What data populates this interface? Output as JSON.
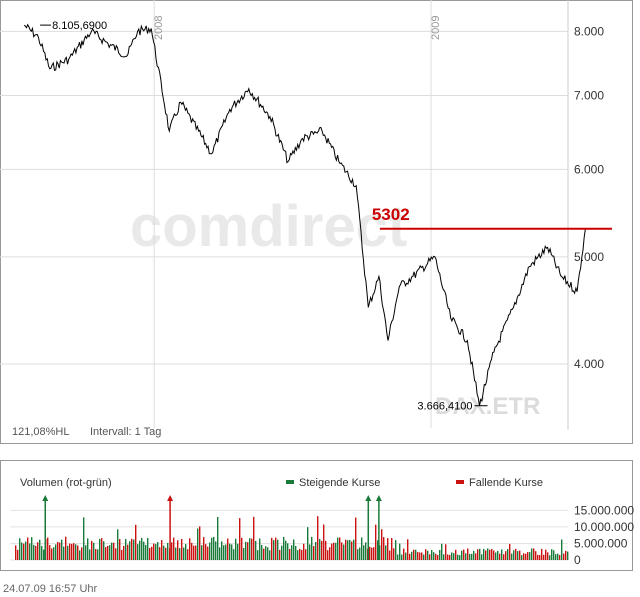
{
  "chart_data": [
    {
      "type": "line",
      "title": "",
      "xlabel": "",
      "ylabel": "",
      "y_scale": "log",
      "ylim": [
        3500,
        8400
      ],
      "yticks": [
        8000,
        7000,
        6000,
        5000,
        4000
      ],
      "ytick_labels": [
        "8.000",
        "7.000",
        "6.000",
        "5.000",
        "4.000"
      ],
      "x_start": "2007-07",
      "x_end": "2009-07",
      "year_marks": [
        {
          "label": "2008",
          "date": "2008-01"
        },
        {
          "label": "2009",
          "date": "2009-01"
        }
      ],
      "series": [
        {
          "color": "#000000",
          "x": [
            "2007-07-13",
            "2007-08-01",
            "2007-08-16",
            "2007-09-10",
            "2007-10-10",
            "2007-11-01",
            "2007-11-26",
            "2007-12-10",
            "2007-12-28",
            "2008-01-21",
            "2008-02-05",
            "2008-03-17",
            "2008-04-10",
            "2008-05-05",
            "2008-06-02",
            "2008-06-26",
            "2008-07-15",
            "2008-08-10",
            "2008-09-01",
            "2008-09-24",
            "2008-10-10",
            "2008-10-24",
            "2008-11-05",
            "2008-11-20",
            "2008-12-08",
            "2009-01-06",
            "2009-01-27",
            "2009-02-18",
            "2009-03-06",
            "2009-03-25",
            "2009-04-20",
            "2009-05-11",
            "2009-06-04",
            "2009-06-22",
            "2009-07-13",
            "2009-07-24"
          ],
          "y": [
            8105.69,
            7900,
            7400,
            7550,
            8000,
            7800,
            7600,
            8000,
            8050,
            6500,
            6900,
            6200,
            6800,
            7100,
            6700,
            6100,
            6400,
            6500,
            6100,
            5800,
            4500,
            4800,
            4200,
            4700,
            4800,
            5000,
            4400,
            4200,
            3666.41,
            4100,
            4500,
            4900,
            5100,
            4800,
            4650,
            5302
          ]
        }
      ],
      "annotations": [
        {
          "text": "8.105,6900",
          "x": "2007-07-13",
          "y": 8105.69
        },
        {
          "text": "3.666,4100",
          "x": "2009-03-06",
          "y": 3666.41
        }
      ],
      "reference_line": {
        "label": "5302",
        "y": 5302,
        "color": "#cc0000",
        "from": "2009-01-06"
      },
      "watermark": "comdirect",
      "instrument": "DAX.ETR",
      "info": [
        "121,08%HL",
        "Intervall: 1 Tag"
      ]
    },
    {
      "type": "bar",
      "title": "Volumen (rot-grün)",
      "y_scale": "linear",
      "ylim": [
        0,
        16000000
      ],
      "yticks": [
        0,
        5000000,
        10000000,
        15000000
      ],
      "ytick_labels": [
        "0",
        "5.000.000",
        "10.000.000",
        "15.000.000"
      ],
      "legend": [
        {
          "name": "Steigende Kurse",
          "color": "#1a7a3a"
        },
        {
          "name": "Fallende Kurse",
          "color": "#cc1111"
        }
      ],
      "up_color": "#1a7a3a",
      "down_color": "#cc1111",
      "spikes": [
        {
          "date": "2007-08-10",
          "value": 16500000,
          "kind": "up"
        },
        {
          "date": "2008-01-22",
          "value": 16500000,
          "kind": "down"
        },
        {
          "date": "2008-10-10",
          "value": 16500000,
          "kind": "up"
        },
        {
          "date": "2008-10-24",
          "value": 16500000,
          "kind": "up"
        }
      ]
    }
  ],
  "footer": {
    "timestamp": "24.07.09    16:57 Uhr"
  }
}
